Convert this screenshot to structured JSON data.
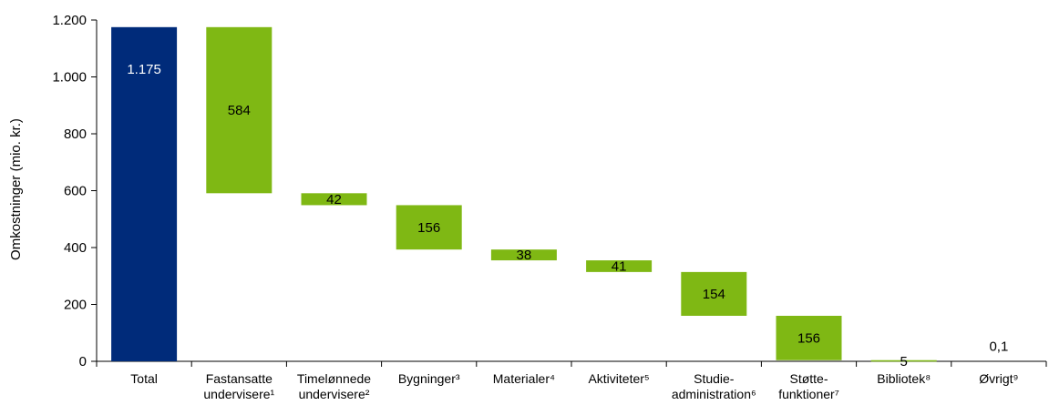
{
  "chart_data": {
    "type": "bar",
    "subtype": "waterfall",
    "ylabel": "Omkostninger (mio. kr.)",
    "ylim": [
      0,
      1200
    ],
    "yticks": [
      0,
      200,
      400,
      600,
      800,
      1000,
      1200
    ],
    "ytick_labels": [
      "0",
      "200",
      "400",
      "600",
      "800",
      "1.000",
      "1.200"
    ],
    "grid": false,
    "legend": "none",
    "categories": [
      {
        "lines": [
          "Total"
        ]
      },
      {
        "lines": [
          "Fastansatte",
          "undervisere¹"
        ]
      },
      {
        "lines": [
          "Timelønnede",
          "undervisere²"
        ]
      },
      {
        "lines": [
          "Bygninger³"
        ]
      },
      {
        "lines": [
          "Materialer⁴"
        ]
      },
      {
        "lines": [
          "Aktiviteter⁵"
        ]
      },
      {
        "lines": [
          "Studie-",
          "administration⁶"
        ]
      },
      {
        "lines": [
          "Støtte-",
          "funktioner⁷"
        ]
      },
      {
        "lines": [
          "Bibliotek⁸"
        ]
      },
      {
        "lines": [
          "Øvrigt⁹"
        ]
      }
    ],
    "bars": [
      {
        "value": 1175,
        "label": "1.175",
        "kind": "total"
      },
      {
        "value": 584,
        "label": "584",
        "kind": "component"
      },
      {
        "value": 42,
        "label": "42",
        "kind": "component"
      },
      {
        "value": 156,
        "label": "156",
        "kind": "component"
      },
      {
        "value": 38,
        "label": "38",
        "kind": "component"
      },
      {
        "value": 41,
        "label": "41",
        "kind": "component"
      },
      {
        "value": 154,
        "label": "154",
        "kind": "component"
      },
      {
        "value": 156,
        "label": "156",
        "kind": "component"
      },
      {
        "value": 5,
        "label": "5",
        "kind": "component"
      },
      {
        "value": 0.1,
        "label": "0,1",
        "kind": "component"
      }
    ],
    "colors": {
      "total": "#002b7a",
      "component": "#7fb814",
      "total_label": "#ffffff",
      "component_label": "#000000",
      "axis": "#000000"
    }
  }
}
